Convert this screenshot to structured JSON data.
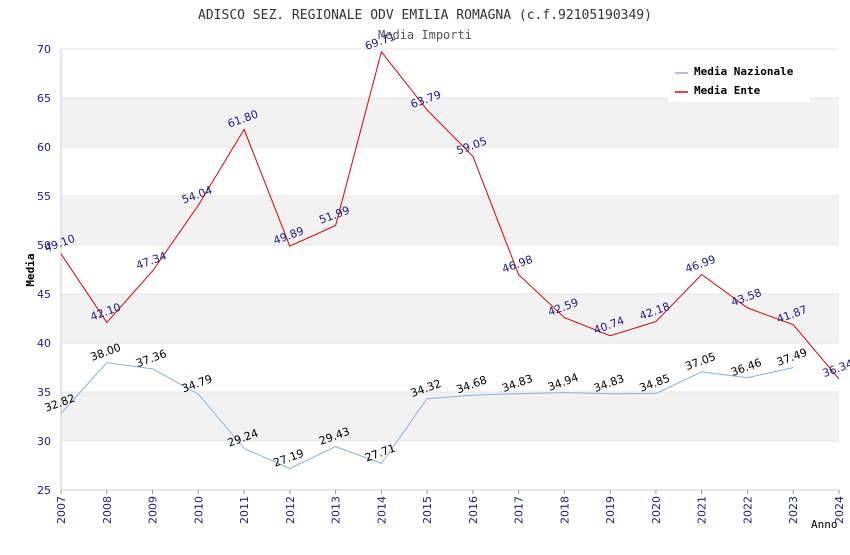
{
  "chart_data": {
    "type": "line",
    "title": "ADISCO SEZ. REGIONALE ODV EMILIA ROMAGNA (c.f.92105190349)",
    "subtitle": "Media Importi",
    "xlabel": "Anno",
    "ylabel": "Media",
    "ylim": [
      25,
      70
    ],
    "yticks": [
      25,
      30,
      35,
      40,
      45,
      50,
      55,
      60,
      65,
      70
    ],
    "x": [
      "2007",
      "2008",
      "2009",
      "2010",
      "2011",
      "2012",
      "2013",
      "2014",
      "2015",
      "2016",
      "2017",
      "2018",
      "2019",
      "2020",
      "2021",
      "2022",
      "2023",
      "2024"
    ],
    "grid": "horizontal bands",
    "legend_position": "top-right",
    "series": [
      {
        "name": "Media Nazionale",
        "color": "#7fb3e6",
        "label_color": "#000000",
        "values": [
          32.82,
          38.0,
          37.36,
          34.79,
          29.24,
          27.19,
          29.43,
          27.71,
          34.32,
          34.68,
          34.83,
          34.94,
          34.83,
          34.85,
          37.05,
          36.46,
          37.49,
          null
        ],
        "labels": [
          "32.82",
          "38.00",
          "37.36",
          "34.79",
          "29.24",
          "27.19",
          "29.43",
          "27.71",
          "34.32",
          "34.68",
          "34.83",
          "34.94",
          "34.83",
          "34.85",
          "37.05",
          "36.46",
          "37.49",
          ""
        ]
      },
      {
        "name": "Media Ente",
        "color": "#dd0000",
        "label_color": "#1a1a8c",
        "values": [
          49.1,
          42.1,
          47.34,
          54.04,
          61.8,
          49.89,
          51.99,
          69.71,
          63.79,
          59.05,
          46.98,
          42.59,
          40.74,
          42.18,
          46.99,
          43.58,
          41.87,
          36.34
        ],
        "labels": [
          "49.10",
          "42.10",
          "47.34",
          "54.04",
          "61.80",
          "49.89",
          "51.99",
          "69.71",
          "63.79",
          "59.05",
          "46.98",
          "42.59",
          "40.74",
          "42.18",
          "46.99",
          "43.58",
          "41.87",
          "36.34"
        ]
      }
    ],
    "colors": {
      "axis_tick_text": "#1a1a8c",
      "band_fill": "#f2f2f2",
      "title_text": "#333333"
    }
  }
}
